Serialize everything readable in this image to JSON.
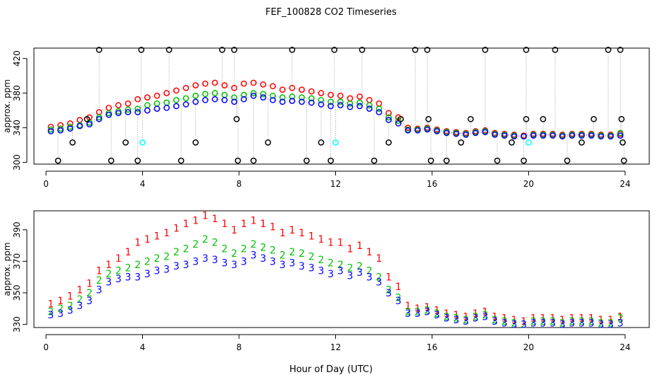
{
  "title": "FEF_100828  CO2 Timeseries",
  "xlabel": "Hour of Day (UTC)",
  "colors": {
    "series1": "#ff0000",
    "series2": "#00c000",
    "series3": "#0000ff",
    "flagged_high": "#000000",
    "flagged_low": "#00ffff",
    "connector": "#aaaaaa"
  },
  "chart_data": [
    {
      "type": "scatter",
      "panel": "top",
      "title": "FEF_100828  CO2 Timeseries",
      "xlabel": "",
      "ylabel": "approx. ppm",
      "xlim": [
        -0.5,
        25
      ],
      "ylim": [
        298,
        432
      ],
      "xticks": [
        0,
        4,
        8,
        12,
        16,
        20,
        24
      ],
      "yticks": [
        300,
        340,
        380,
        420
      ],
      "marker": "circle",
      "connector_lines": true,
      "series": [
        {
          "name": "1",
          "color": "#ff0000",
          "x": [
            0.2,
            0.6,
            1.0,
            1.4,
            1.8,
            2.2,
            2.6,
            3.0,
            3.4,
            3.8,
            4.2,
            4.6,
            5.0,
            5.4,
            5.8,
            6.2,
            6.6,
            7.0,
            7.4,
            7.8,
            8.2,
            8.6,
            9.0,
            9.4,
            9.8,
            10.2,
            10.6,
            11.0,
            11.4,
            11.8,
            12.2,
            12.6,
            13.0,
            13.4,
            13.8,
            14.2,
            14.6,
            15.0,
            15.4,
            15.8,
            16.2,
            16.6,
            17.0,
            17.4,
            17.8,
            18.2,
            18.6,
            19.0,
            19.4,
            19.8,
            20.2,
            20.6,
            21.0,
            21.4,
            21.8,
            22.2,
            22.6,
            23.0,
            23.4,
            23.8
          ],
          "y": [
            341,
            343,
            345,
            349,
            352,
            358,
            363,
            366,
            368,
            373,
            375,
            377,
            380,
            383,
            386,
            389,
            391,
            392,
            389,
            386,
            391,
            392,
            390,
            388,
            384,
            386,
            384,
            382,
            380,
            378,
            377,
            374,
            376,
            372,
            368,
            357,
            352,
            340,
            339,
            340,
            338,
            336,
            335,
            334,
            336,
            337,
            334,
            333,
            332,
            331,
            333,
            333,
            333,
            332,
            333,
            333,
            333,
            332,
            332,
            333
          ]
        },
        {
          "name": "2",
          "color": "#00c000",
          "x": [
            0.2,
            0.6,
            1.0,
            1.4,
            1.8,
            2.2,
            2.6,
            3.0,
            3.4,
            3.8,
            4.2,
            4.6,
            5.0,
            5.4,
            5.8,
            6.2,
            6.6,
            7.0,
            7.4,
            7.8,
            8.2,
            8.6,
            9.0,
            9.4,
            9.8,
            10.2,
            10.6,
            11.0,
            11.4,
            11.8,
            12.2,
            12.6,
            13.0,
            13.4,
            13.8,
            14.2,
            14.6,
            15.0,
            15.4,
            15.8,
            16.2,
            16.6,
            17.0,
            17.4,
            17.8,
            18.2,
            18.6,
            19.0,
            19.4,
            19.8,
            20.2,
            20.6,
            21.0,
            21.4,
            21.8,
            22.2,
            22.6,
            23.0,
            23.4,
            23.8
          ],
          "y": [
            338,
            339,
            341,
            343,
            346,
            352,
            357,
            359,
            361,
            362,
            366,
            368,
            369,
            372,
            374,
            377,
            379,
            380,
            378,
            375,
            378,
            380,
            379,
            377,
            375,
            376,
            375,
            374,
            372,
            370,
            370,
            368,
            369,
            366,
            362,
            352,
            348,
            338,
            338,
            339,
            337,
            335,
            334,
            333,
            335,
            336,
            333,
            332,
            331,
            330,
            332,
            332,
            332,
            331,
            332,
            332,
            332,
            331,
            331,
            334
          ]
        },
        {
          "name": "3",
          "color": "#0000ff",
          "x": [
            0.2,
            0.6,
            1.0,
            1.4,
            1.8,
            2.2,
            2.6,
            3.0,
            3.4,
            3.8,
            4.2,
            4.6,
            5.0,
            5.4,
            5.8,
            6.2,
            6.6,
            7.0,
            7.4,
            7.8,
            8.2,
            8.6,
            9.0,
            9.4,
            9.8,
            10.2,
            10.6,
            11.0,
            11.4,
            11.8,
            12.2,
            12.6,
            13.0,
            13.4,
            13.8,
            14.2,
            14.6,
            15.0,
            15.4,
            15.8,
            16.2,
            16.6,
            17.0,
            17.4,
            17.8,
            18.2,
            18.6,
            19.0,
            19.4,
            19.8,
            20.2,
            20.6,
            21.0,
            21.4,
            21.8,
            22.2,
            22.6,
            23.0,
            23.4,
            23.8
          ],
          "y": [
            336,
            337,
            339,
            342,
            344,
            350,
            355,
            357,
            358,
            358,
            360,
            362,
            363,
            365,
            367,
            370,
            372,
            373,
            372,
            370,
            373,
            377,
            375,
            372,
            370,
            371,
            370,
            369,
            367,
            365,
            366,
            364,
            365,
            362,
            358,
            349,
            345,
            337,
            337,
            338,
            336,
            334,
            333,
            332,
            334,
            335,
            332,
            331,
            330,
            330,
            331,
            331,
            331,
            330,
            331,
            331,
            331,
            330,
            330,
            331
          ]
        }
      ],
      "flagged_points": [
        {
          "x": 0.5,
          "y": 302,
          "color": "#000000"
        },
        {
          "x": 1.1,
          "y": 323,
          "color": "#000000"
        },
        {
          "x": 1.7,
          "y": 350,
          "color": "#000000"
        },
        {
          "x": 2.2,
          "y": 430,
          "color": "#000000"
        },
        {
          "x": 2.7,
          "y": 302,
          "color": "#000000"
        },
        {
          "x": 3.3,
          "y": 323,
          "color": "#000000"
        },
        {
          "x": 3.8,
          "y": 302,
          "color": "#000000"
        },
        {
          "x": 3.95,
          "y": 430,
          "color": "#000000"
        },
        {
          "x": 4.0,
          "y": 323,
          "color": "#00ffff"
        },
        {
          "x": 5.1,
          "y": 430,
          "color": "#000000"
        },
        {
          "x": 5.6,
          "y": 302,
          "color": "#000000"
        },
        {
          "x": 6.2,
          "y": 323,
          "color": "#000000"
        },
        {
          "x": 7.3,
          "y": 430,
          "color": "#000000"
        },
        {
          "x": 7.8,
          "y": 430,
          "color": "#000000"
        },
        {
          "x": 7.9,
          "y": 350,
          "color": "#000000"
        },
        {
          "x": 7.95,
          "y": 302,
          "color": "#000000"
        },
        {
          "x": 8.6,
          "y": 302,
          "color": "#000000"
        },
        {
          "x": 9.2,
          "y": 323,
          "color": "#000000"
        },
        {
          "x": 10.2,
          "y": 430,
          "color": "#000000"
        },
        {
          "x": 10.8,
          "y": 302,
          "color": "#000000"
        },
        {
          "x": 11.4,
          "y": 323,
          "color": "#000000"
        },
        {
          "x": 11.8,
          "y": 302,
          "color": "#000000"
        },
        {
          "x": 11.95,
          "y": 430,
          "color": "#000000"
        },
        {
          "x": 12.0,
          "y": 323,
          "color": "#00ffff"
        },
        {
          "x": 13.1,
          "y": 430,
          "color": "#000000"
        },
        {
          "x": 13.6,
          "y": 302,
          "color": "#000000"
        },
        {
          "x": 14.2,
          "y": 323,
          "color": "#000000"
        },
        {
          "x": 14.7,
          "y": 350,
          "color": "#000000"
        },
        {
          "x": 15.3,
          "y": 430,
          "color": "#000000"
        },
        {
          "x": 15.8,
          "y": 430,
          "color": "#000000"
        },
        {
          "x": 15.85,
          "y": 350,
          "color": "#000000"
        },
        {
          "x": 15.95,
          "y": 302,
          "color": "#000000"
        },
        {
          "x": 16.6,
          "y": 302,
          "color": "#000000"
        },
        {
          "x": 17.2,
          "y": 323,
          "color": "#000000"
        },
        {
          "x": 17.6,
          "y": 350,
          "color": "#000000"
        },
        {
          "x": 18.2,
          "y": 430,
          "color": "#000000"
        },
        {
          "x": 18.7,
          "y": 302,
          "color": "#000000"
        },
        {
          "x": 19.3,
          "y": 323,
          "color": "#000000"
        },
        {
          "x": 19.8,
          "y": 302,
          "color": "#000000"
        },
        {
          "x": 19.9,
          "y": 430,
          "color": "#000000"
        },
        {
          "x": 19.9,
          "y": 350,
          "color": "#000000"
        },
        {
          "x": 20.0,
          "y": 323,
          "color": "#00ffff"
        },
        {
          "x": 20.6,
          "y": 350,
          "color": "#000000"
        },
        {
          "x": 21.1,
          "y": 430,
          "color": "#000000"
        },
        {
          "x": 21.6,
          "y": 302,
          "color": "#000000"
        },
        {
          "x": 22.2,
          "y": 323,
          "color": "#000000"
        },
        {
          "x": 22.7,
          "y": 350,
          "color": "#000000"
        },
        {
          "x": 23.3,
          "y": 430,
          "color": "#000000"
        },
        {
          "x": 23.8,
          "y": 430,
          "color": "#000000"
        },
        {
          "x": 23.85,
          "y": 350,
          "color": "#000000"
        },
        {
          "x": 23.9,
          "y": 323,
          "color": "#000000"
        },
        {
          "x": 23.95,
          "y": 302,
          "color": "#000000"
        }
      ]
    },
    {
      "type": "scatter",
      "panel": "bottom",
      "title": "",
      "xlabel": "Hour of Day (UTC)",
      "ylabel": "approx. ppm",
      "xlim": [
        -0.5,
        25
      ],
      "ylim": [
        328,
        402
      ],
      "xticks": [
        0,
        4,
        8,
        12,
        16,
        20,
        24
      ],
      "yticks": [
        330,
        350,
        370,
        390
      ],
      "marker": "series-number",
      "series": [
        {
          "name": "1",
          "color": "#ff0000",
          "label": "1",
          "x": [
            0.2,
            0.6,
            1.0,
            1.4,
            1.8,
            2.2,
            2.6,
            3.0,
            3.4,
            3.8,
            4.2,
            4.6,
            5.0,
            5.4,
            5.8,
            6.2,
            6.6,
            7.0,
            7.4,
            7.8,
            8.2,
            8.6,
            9.0,
            9.4,
            9.8,
            10.2,
            10.6,
            11.0,
            11.4,
            11.8,
            12.2,
            12.6,
            13.0,
            13.4,
            13.8,
            14.2,
            14.6,
            15.0,
            15.4,
            15.8,
            16.2,
            16.6,
            17.0,
            17.4,
            17.8,
            18.2,
            18.6,
            19.0,
            19.4,
            19.8,
            20.2,
            20.6,
            21.0,
            21.4,
            21.8,
            22.2,
            22.6,
            23.0,
            23.4,
            23.8
          ],
          "y": [
            343,
            345,
            348,
            352,
            356,
            364,
            368,
            372,
            376,
            382,
            384,
            386,
            388,
            391,
            394,
            396,
            399,
            397,
            394,
            390,
            394,
            396,
            394,
            392,
            388,
            390,
            388,
            386,
            384,
            382,
            382,
            378,
            380,
            376,
            372,
            360,
            354,
            342,
            340,
            341,
            339,
            337,
            336,
            335,
            337,
            338,
            335,
            334,
            333,
            332,
            334,
            334,
            334,
            333,
            334,
            334,
            334,
            333,
            333,
            335
          ]
        },
        {
          "name": "2",
          "color": "#00c000",
          "label": "2",
          "x": [
            0.2,
            0.6,
            1.0,
            1.4,
            1.8,
            2.2,
            2.6,
            3.0,
            3.4,
            3.8,
            4.2,
            4.6,
            5.0,
            5.4,
            5.8,
            6.2,
            6.6,
            7.0,
            7.4,
            7.8,
            8.2,
            8.6,
            9.0,
            9.4,
            9.8,
            10.2,
            10.6,
            11.0,
            11.4,
            11.8,
            12.2,
            12.6,
            13.0,
            13.4,
            13.8,
            14.2,
            14.6,
            15.0,
            15.4,
            15.8,
            16.2,
            16.6,
            17.0,
            17.4,
            17.8,
            18.2,
            18.6,
            19.0,
            19.4,
            19.8,
            20.2,
            20.6,
            21.0,
            21.4,
            21.8,
            22.2,
            22.6,
            23.0,
            23.4,
            23.8
          ],
          "y": [
            338,
            340,
            342,
            346,
            350,
            358,
            362,
            364,
            366,
            368,
            370,
            372,
            373,
            376,
            378,
            381,
            384,
            382,
            378,
            375,
            378,
            381,
            379,
            377,
            374,
            376,
            375,
            373,
            371,
            369,
            368,
            366,
            367,
            364,
            360,
            352,
            347,
            338,
            338,
            339,
            337,
            335,
            334,
            333,
            335,
            336,
            333,
            332,
            331,
            330,
            332,
            332,
            332,
            331,
            332,
            332,
            332,
            331,
            331,
            334
          ]
        },
        {
          "name": "3",
          "color": "#0000ff",
          "label": "3",
          "x": [
            0.2,
            0.6,
            1.0,
            1.4,
            1.8,
            2.2,
            2.6,
            3.0,
            3.4,
            3.8,
            4.2,
            4.6,
            5.0,
            5.4,
            5.8,
            6.2,
            6.6,
            7.0,
            7.4,
            7.8,
            8.2,
            8.6,
            9.0,
            9.4,
            9.8,
            10.2,
            10.6,
            11.0,
            11.4,
            11.8,
            12.2,
            12.6,
            13.0,
            13.4,
            13.8,
            14.2,
            14.6,
            15.0,
            15.4,
            15.8,
            16.2,
            16.6,
            17.0,
            17.4,
            17.8,
            18.2,
            18.6,
            19.0,
            19.4,
            19.8,
            20.2,
            20.6,
            21.0,
            21.4,
            21.8,
            22.2,
            22.6,
            23.0,
            23.4,
            23.8
          ],
          "y": [
            336,
            337,
            339,
            342,
            345,
            352,
            357,
            359,
            360,
            360,
            362,
            364,
            365,
            367,
            368,
            370,
            372,
            371,
            369,
            368,
            370,
            374,
            372,
            370,
            368,
            369,
            367,
            366,
            364,
            362,
            364,
            361,
            363,
            360,
            357,
            350,
            345,
            337,
            337,
            338,
            336,
            334,
            333,
            332,
            334,
            335,
            332,
            331,
            330,
            330,
            331,
            331,
            331,
            330,
            331,
            331,
            331,
            330,
            330,
            331
          ]
        }
      ]
    }
  ]
}
